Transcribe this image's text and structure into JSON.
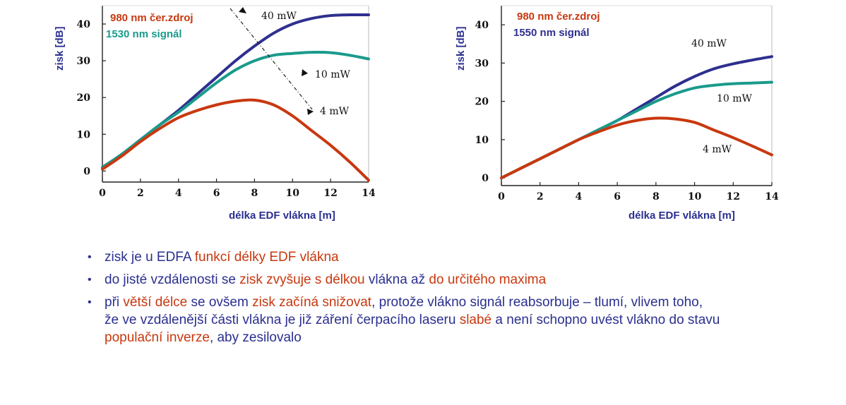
{
  "chart_data": [
    {
      "type": "line",
      "legend": [
        {
          "text": "980 nm čer.zdroj",
          "color": "#c8380f"
        },
        {
          "text": "1530 nm signál",
          "color": "#1a9a8c"
        }
      ],
      "xlabel": "délka EDF vlákna [m]",
      "ylabel": "zisk [dB]",
      "xlim": [
        0,
        14
      ],
      "ylim": [
        -3,
        45
      ],
      "xticks": [
        "0",
        "2",
        "4",
        "6",
        "8",
        "10",
        "12",
        "14"
      ],
      "yticks": [
        "0",
        "10",
        "20",
        "30",
        "40"
      ],
      "annotations": [
        "40 mW",
        "10 mW",
        "4 mW"
      ],
      "series": [
        {
          "label": "40 mW",
          "color": "#2e2f8f",
          "x": [
            0,
            1,
            2,
            3,
            4,
            5,
            6,
            7,
            8,
            9,
            10,
            11,
            12,
            13,
            14
          ],
          "y": [
            1,
            4.5,
            8.5,
            12.5,
            16.5,
            21,
            25.5,
            30,
            34,
            37.5,
            40,
            41.5,
            42.3,
            42.5,
            42.5
          ]
        },
        {
          "label": "10 mW",
          "color": "#1a9a8c",
          "x": [
            0,
            1,
            2,
            3,
            4,
            5,
            6,
            7,
            8,
            9,
            10,
            11,
            12,
            13,
            14
          ],
          "y": [
            1,
            4.5,
            8.5,
            12.5,
            16,
            20,
            24,
            27.5,
            30,
            31.5,
            32,
            32.3,
            32.2,
            31.5,
            30.5
          ]
        },
        {
          "label": "4 mW",
          "color": "#c8380f",
          "x": [
            0,
            1,
            2,
            3,
            4,
            5,
            6,
            7,
            8,
            9,
            10,
            11,
            12,
            13,
            14
          ],
          "y": [
            0.5,
            4,
            8,
            11.5,
            14.5,
            16.5,
            18,
            19,
            19.3,
            18,
            15,
            11,
            7,
            2.5,
            -2.5
          ]
        }
      ]
    },
    {
      "type": "line",
      "legend": [
        {
          "text": "980 nm čer.zdroj",
          "color": "#c8380f"
        },
        {
          "text": "1550 nm signál",
          "color": "#2e2f8f"
        }
      ],
      "xlabel": "délka EDF vlákna [m]",
      "ylabel": "zisk [dB]",
      "xlim": [
        0,
        14
      ],
      "ylim": [
        -2,
        45
      ],
      "xticks": [
        "0",
        "2",
        "4",
        "6",
        "8",
        "10",
        "12",
        "14"
      ],
      "yticks": [
        "0",
        "10",
        "20",
        "30",
        "40"
      ],
      "annotations": [
        "40 mW",
        "10 mW",
        "4 mW"
      ],
      "series": [
        {
          "label": "40 mW",
          "color": "#2e2f8f",
          "x": [
            0,
            1,
            2,
            3,
            4,
            5,
            6,
            7,
            8,
            9,
            10,
            11,
            12,
            13,
            14
          ],
          "y": [
            0,
            2.5,
            5,
            7.5,
            10,
            12.5,
            15,
            18,
            21,
            24,
            26.5,
            28.5,
            29.8,
            30.8,
            31.7
          ]
        },
        {
          "label": "10 mW",
          "color": "#1a9a8c",
          "x": [
            0,
            1,
            2,
            3,
            4,
            5,
            6,
            7,
            8,
            9,
            10,
            11,
            12,
            13,
            14
          ],
          "y": [
            0,
            2.5,
            5,
            7.5,
            10,
            12.5,
            15,
            17.5,
            20,
            22,
            23.5,
            24.2,
            24.6,
            24.8,
            25
          ]
        },
        {
          "label": "4 mW",
          "color": "#c8380f",
          "x": [
            0,
            1,
            2,
            3,
            4,
            5,
            6,
            7,
            8,
            9,
            10,
            11,
            12,
            13,
            14
          ],
          "y": [
            0,
            2.5,
            5,
            7.5,
            10,
            12,
            13.8,
            15,
            15.6,
            15.4,
            14.5,
            12.5,
            10.5,
            8.3,
            6
          ]
        }
      ]
    }
  ],
  "bullets": [
    [
      {
        "text": "zisk je u EDFA ",
        "style": "normal"
      },
      {
        "text": "funkcí délky EDF vlákna",
        "style": "red"
      }
    ],
    [
      {
        "text": "do jisté vzdálenosti se ",
        "style": "normal"
      },
      {
        "text": "zisk zvyšuje s délkou",
        "style": "red"
      },
      {
        "text": " vlákna až ",
        "style": "normal"
      },
      {
        "text": "do určitého maxima",
        "style": "red"
      }
    ],
    [
      {
        "text": "při ",
        "style": "normal"
      },
      {
        "text": "větší délce",
        "style": "red"
      },
      {
        "text": " se ovšem ",
        "style": "normal"
      },
      {
        "text": "zisk začíná snižovat",
        "style": "red"
      },
      {
        "text": ", protože vlákno signál reabsorbuje – tlumí, vlivem toho, že ve vzdálenější části vlákna je již záření čerpacího laseru ",
        "style": "normal"
      },
      {
        "text": "slabé",
        "style": "red"
      },
      {
        "text": " a není schopno uvést vlákno do stavu ",
        "style": "normal"
      },
      {
        "text": "populační inverze",
        "style": "red"
      },
      {
        "text": ", aby zesilovalo",
        "style": "normal"
      }
    ]
  ]
}
